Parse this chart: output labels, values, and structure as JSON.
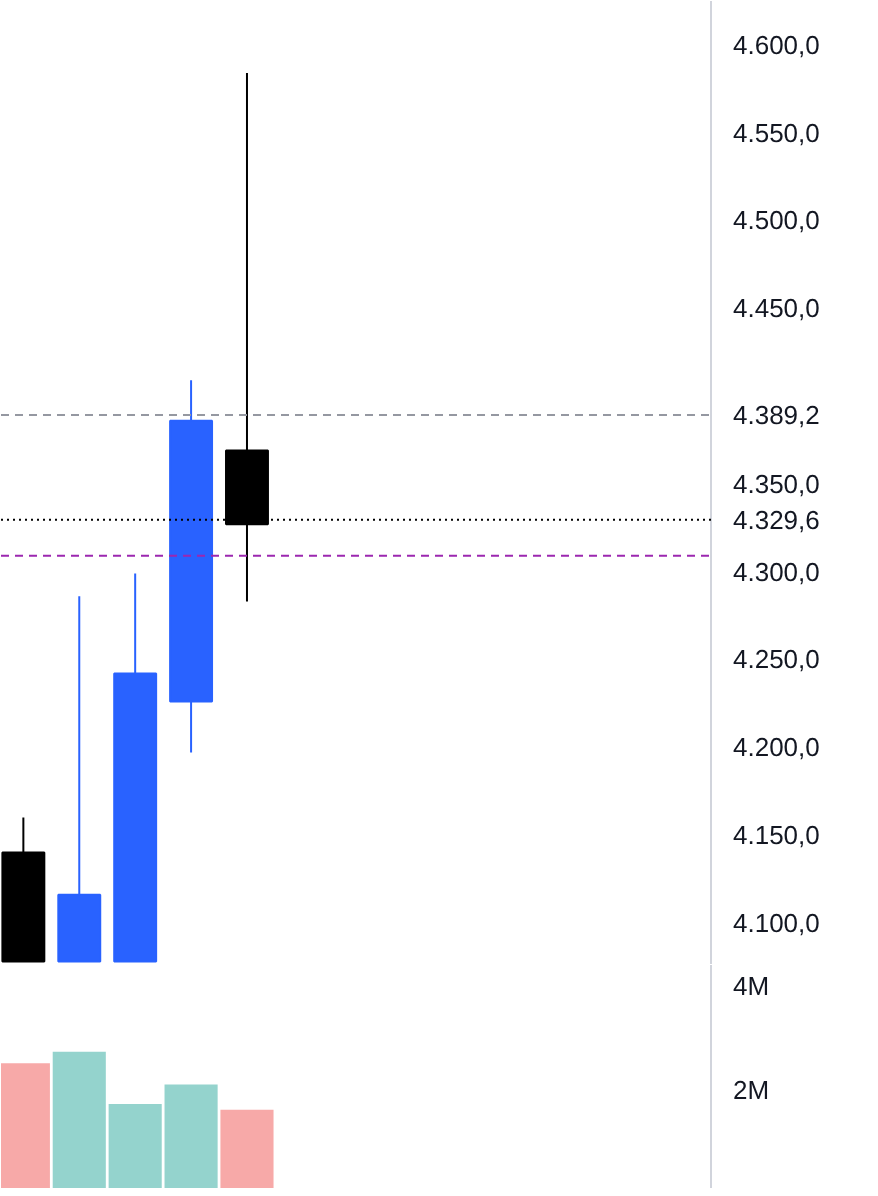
{
  "chart_data": [
    {
      "type": "candlestick",
      "categories": [
        null,
        null,
        null,
        null,
        null,
        null,
        null,
        null,
        null,
        null,
        null,
        null,
        null
      ],
      "ohlc": [
        [
          4140,
          4160,
          4078,
          4078
        ],
        [
          4078,
          4286,
          4078,
          4116
        ],
        [
          4078,
          4299,
          4078,
          4242
        ],
        [
          4226,
          4409,
          4197,
          4386
        ],
        [
          4369,
          4584,
          4283,
          4327
        ],
        null,
        null,
        null,
        null,
        null,
        null,
        null,
        null
      ],
      "colors": [
        "#000000",
        "#2962ff",
        "#2962ff",
        "#2962ff",
        "#000000",
        null,
        null,
        null,
        null,
        null,
        null,
        null,
        null
      ],
      "ylim": [
        4076,
        4625
      ],
      "yticks": [
        {
          "value": 4100,
          "label": "4.100,0"
        },
        {
          "value": 4150,
          "label": "4.150,0"
        },
        {
          "value": 4200,
          "label": "4.200,0"
        },
        {
          "value": 4250,
          "label": "4.250,0"
        },
        {
          "value": 4300,
          "label": "4.300,0"
        },
        {
          "value": 4350,
          "label": "4.350,0"
        },
        {
          "value": 4450,
          "label": "4.450,0"
        },
        {
          "value": 4500,
          "label": "4.500,0"
        },
        {
          "value": 4550,
          "label": "4.550,0"
        },
        {
          "value": 4600,
          "label": "4.600,0"
        }
      ],
      "ref_lines": [
        {
          "axis": "y",
          "value": 4389.2,
          "label": "4.389,2",
          "color": "#9598a1",
          "line_style": "dashed"
        },
        {
          "axis": "y",
          "value": 4329.6,
          "label": "4.329,6",
          "color": "#000000",
          "line_style": "dotted"
        },
        {
          "axis": "y",
          "value": 4309,
          "label": null,
          "color": "#9c27b0",
          "line_style": "dashed"
        }
      ],
      "grid": false
    },
    {
      "type": "bar",
      "categories": [
        null,
        null,
        null,
        null,
        null,
        null,
        null,
        null,
        null,
        null,
        null,
        null,
        null
      ],
      "values": [
        2520000,
        2740000,
        1740000,
        2110000,
        1630000,
        null,
        null,
        null,
        null,
        null,
        null,
        null,
        null
      ],
      "colors": [
        "#f7a9a8",
        "#94d3cd",
        "#94d3cd",
        "#94d3cd",
        "#f7a9a8",
        null,
        null,
        null,
        null,
        null,
        null,
        null,
        null
      ],
      "ylim": [
        110000,
        4400000
      ],
      "yticks": [
        {
          "value": 2000000,
          "label": "2M"
        },
        {
          "value": 4000000,
          "label": "4M"
        }
      ],
      "grid": false
    }
  ]
}
